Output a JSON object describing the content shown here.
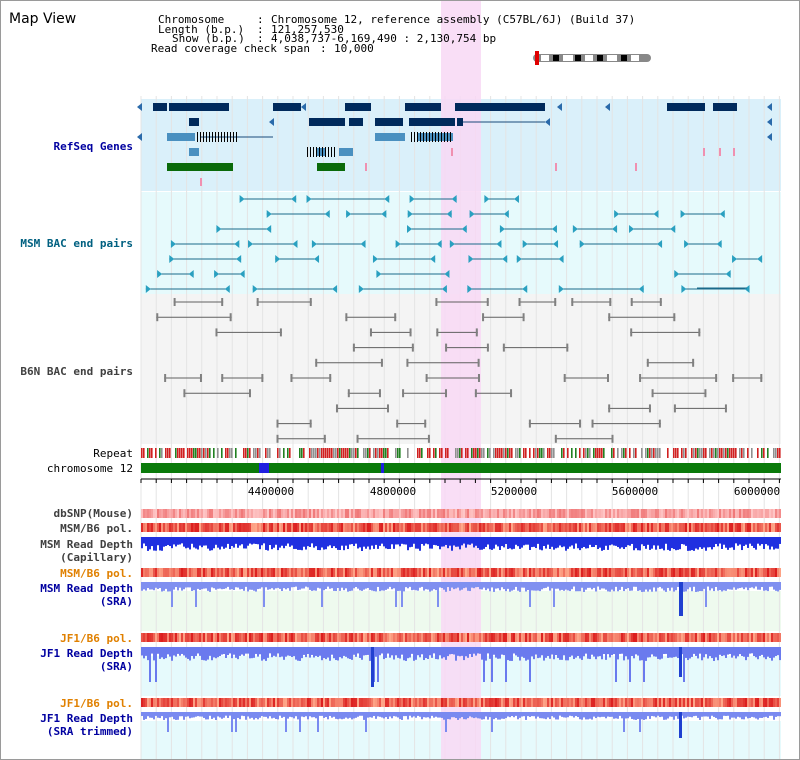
{
  "page": {
    "title": "Map View"
  },
  "header": {
    "chromosome_label": "Chromosome",
    "chromosome_value": "Chromosome 12, reference assembly (C57BL/6J) (Build 37)",
    "length_label": "Length (b.p.)",
    "length_value": "121,257,530",
    "show_label": "Show (b.p.)",
    "show_value": "4,038,737-6,169,490 : 2,130,754 bp",
    "coverage_label": "Read coverage check span",
    "coverage_value": "10,000"
  },
  "tracks": {
    "refseq": "RefSeq Genes",
    "msm_bac": "MSM BAC end pairs",
    "b6n_bac": "B6N BAC end pairs",
    "repeat": "Repeat",
    "chromosome": "chromosome 12",
    "dbsnp": "dbSNP(Mouse)",
    "msm_b6_pol_1": "MSM/B6 pol.",
    "msm_depth_cap_1": "MSM Read Depth",
    "msm_depth_cap_2": "(Capillary)",
    "msm_b6_pol_2": "MSM/B6 pol.",
    "msm_depth_sra_1": "MSM Read Depth",
    "msm_depth_sra_2": "(SRA)",
    "jf1_b6_pol_1": "JF1/B6 pol.",
    "jf1_depth_sra_1": "JF1 Read Depth",
    "jf1_depth_sra_2": "(SRA)",
    "jf1_b6_pol_2": "JF1/B6 pol.",
    "jf1_depth_trim_1": "JF1 Read Depth",
    "jf1_depth_trim_2": "(SRA trimmed)"
  },
  "axis": {
    "ticks": [
      "4400000",
      "4800000",
      "5200000",
      "5600000",
      "6000000"
    ]
  },
  "colors": {
    "refseq_label": "#0000a0",
    "msm_label": "#006080",
    "b6n_label": "#404040",
    "pol_msm_label": "#e08000",
    "highlight": "#f8d8f4"
  }
}
